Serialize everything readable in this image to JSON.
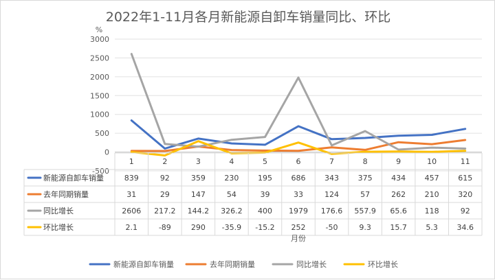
{
  "chart_data": {
    "type": "line",
    "title": "2022年1-11月各月新能源自卸车销量同比、环比",
    "ylabel": "%",
    "xlabel": "月份",
    "categories": [
      "1",
      "2",
      "3",
      "4",
      "5",
      "6",
      "7",
      "8",
      "9",
      "10",
      "11"
    ],
    "ylim": [
      -500,
      3000
    ],
    "yticks": [
      -500,
      0,
      500,
      1000,
      1500,
      2000,
      2500,
      3000
    ],
    "grid": true,
    "legend_position": "bottom",
    "series": [
      {
        "name": "新能源自卸车销量",
        "color": "#4472C4",
        "values": [
          839,
          92,
          359,
          230,
          195,
          686,
          343,
          375,
          434,
          457,
          615
        ],
        "labels": [
          "839",
          "92",
          "359",
          "230",
          "195",
          "686",
          "343",
          "375",
          "434",
          "457",
          "615"
        ]
      },
      {
        "name": "去年同期销量",
        "color": "#ED7D31",
        "values": [
          31,
          29,
          147,
          54,
          39,
          33,
          124,
          57,
          262,
          210,
          320
        ],
        "labels": [
          "31",
          "29",
          "147",
          "54",
          "39",
          "33",
          "124",
          "57",
          "262",
          "210",
          "320"
        ]
      },
      {
        "name": "同比增长",
        "color": "#A5A5A5",
        "values": [
          2606,
          217.2,
          144.2,
          326.2,
          400,
          1979,
          176.6,
          557.9,
          65.6,
          118,
          92
        ],
        "labels": [
          "2606",
          "217.2",
          "144.2",
          "326.2",
          "400",
          "1979",
          "176.6",
          "557.9",
          "65.6",
          "118",
          "92"
        ]
      },
      {
        "name": "环比增长",
        "color": "#FFC000",
        "values": [
          2.1,
          -89,
          290,
          -35.9,
          -15.2,
          252,
          -50,
          9.3,
          15.7,
          5.3,
          34.6
        ],
        "labels": [
          "2.1",
          "-89",
          "290",
          "-35.9",
          "-15.2",
          "252",
          "-50",
          "9.3",
          "15.7",
          "5.3",
          "34.6"
        ]
      }
    ]
  }
}
